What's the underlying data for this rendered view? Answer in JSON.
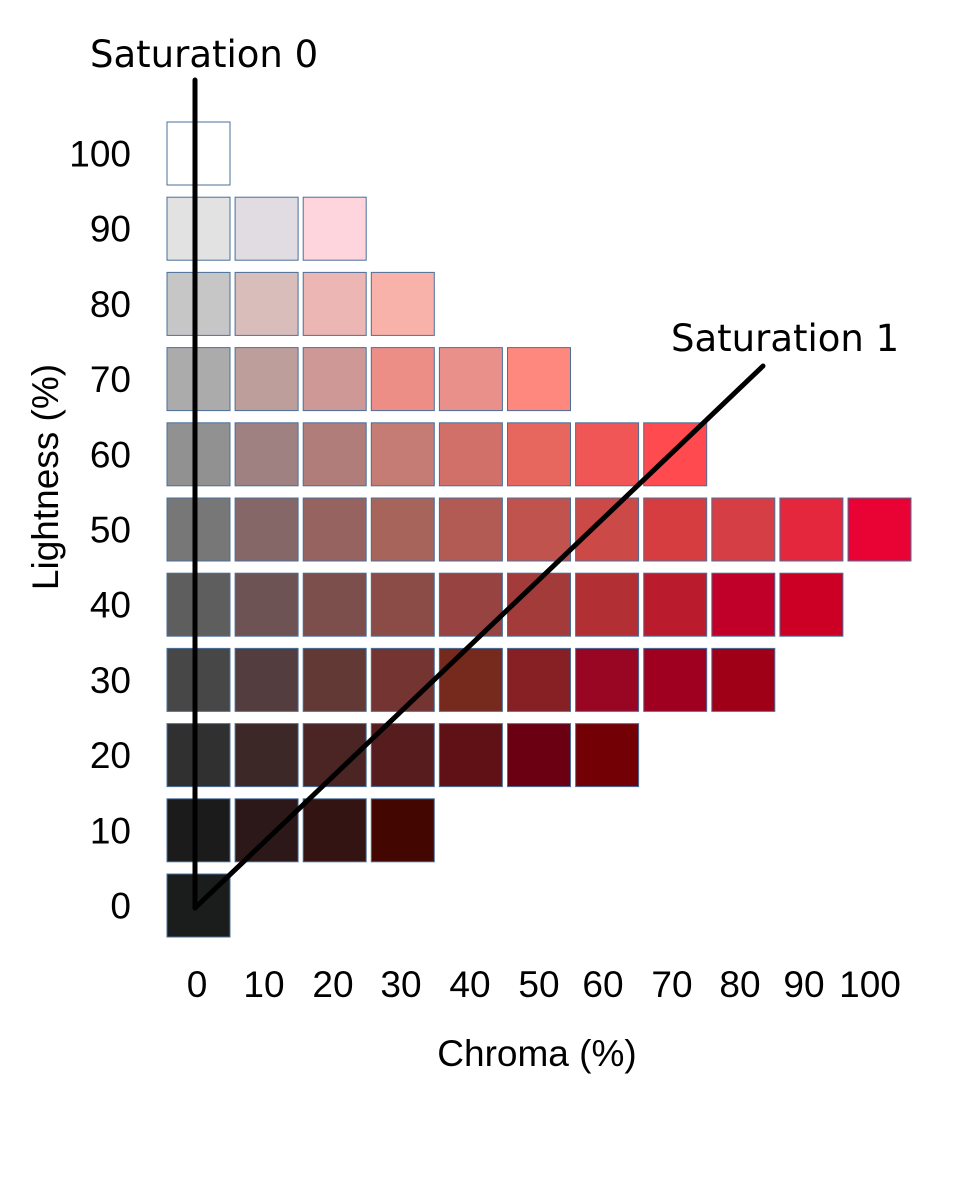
{
  "chart_data": {
    "type": "heatmap",
    "xlabel": "Chroma (%)",
    "ylabel": "Lightness (%)",
    "x_ticks": [
      "0",
      "10",
      "20",
      "30",
      "40",
      "50",
      "60",
      "70",
      "80",
      "90",
      "100"
    ],
    "y_ticks": [
      "100",
      "90",
      "80",
      "70",
      "60",
      "50",
      "40",
      "30",
      "20",
      "10",
      "0"
    ],
    "rows": [
      {
        "lightness": 100,
        "colors": [
          "#ffffff"
        ]
      },
      {
        "lightness": 90,
        "colors": [
          "#e2e2e2",
          "#e1dce2",
          "#fed5dc"
        ]
      },
      {
        "lightness": 80,
        "colors": [
          "#c6c6c6",
          "#d8bdbb",
          "#ebb6b3",
          "#f9b2aa"
        ]
      },
      {
        "lightness": 70,
        "colors": [
          "#ababab",
          "#bd9e9b",
          "#cd9896",
          "#ec8e86",
          "#e9908a",
          "#fe877e"
        ]
      },
      {
        "lightness": 60,
        "colors": [
          "#919191",
          "#a08181",
          "#b17d7b",
          "#c47c74",
          "#d17069",
          "#e7675f",
          "#f15656",
          "#ff4a4f"
        ]
      },
      {
        "lightness": 50,
        "colors": [
          "#777777",
          "#856767",
          "#966360",
          "#a6645b",
          "#b25b55",
          "#c1534e",
          "#cb4a47",
          "#d53d41",
          "#d53e44",
          "#e4273c",
          "#e90234"
        ]
      },
      {
        "lightness": 40,
        "colors": [
          "#5e5e5e",
          "#6e5354",
          "#7c4f4c",
          "#8b4b47",
          "#964342",
          "#a43b3b",
          "#b22f33",
          "#ba1c2e",
          "#c1002a",
          "#cc0024"
        ]
      },
      {
        "lightness": 30,
        "colors": [
          "#474747",
          "#543d3e",
          "#623935",
          "#743532",
          "#762a1d",
          "#862024",
          "#980624",
          "#9f001f",
          "#9f0017"
        ]
      },
      {
        "lightness": 20,
        "colors": [
          "#303030",
          "#3d2828",
          "#4b2424",
          "#571c1e",
          "#601116",
          "#6b0012",
          "#730004"
        ]
      },
      {
        "lightness": 10,
        "colors": [
          "#1b1b1b",
          "#2d1819",
          "#331413",
          "#440600"
        ]
      },
      {
        "lightness": 0,
        "colors": [
          "#1b1d1c"
        ]
      }
    ],
    "annotations": [
      {
        "label": "Saturation 0"
      },
      {
        "label": "Saturation 1"
      }
    ]
  }
}
